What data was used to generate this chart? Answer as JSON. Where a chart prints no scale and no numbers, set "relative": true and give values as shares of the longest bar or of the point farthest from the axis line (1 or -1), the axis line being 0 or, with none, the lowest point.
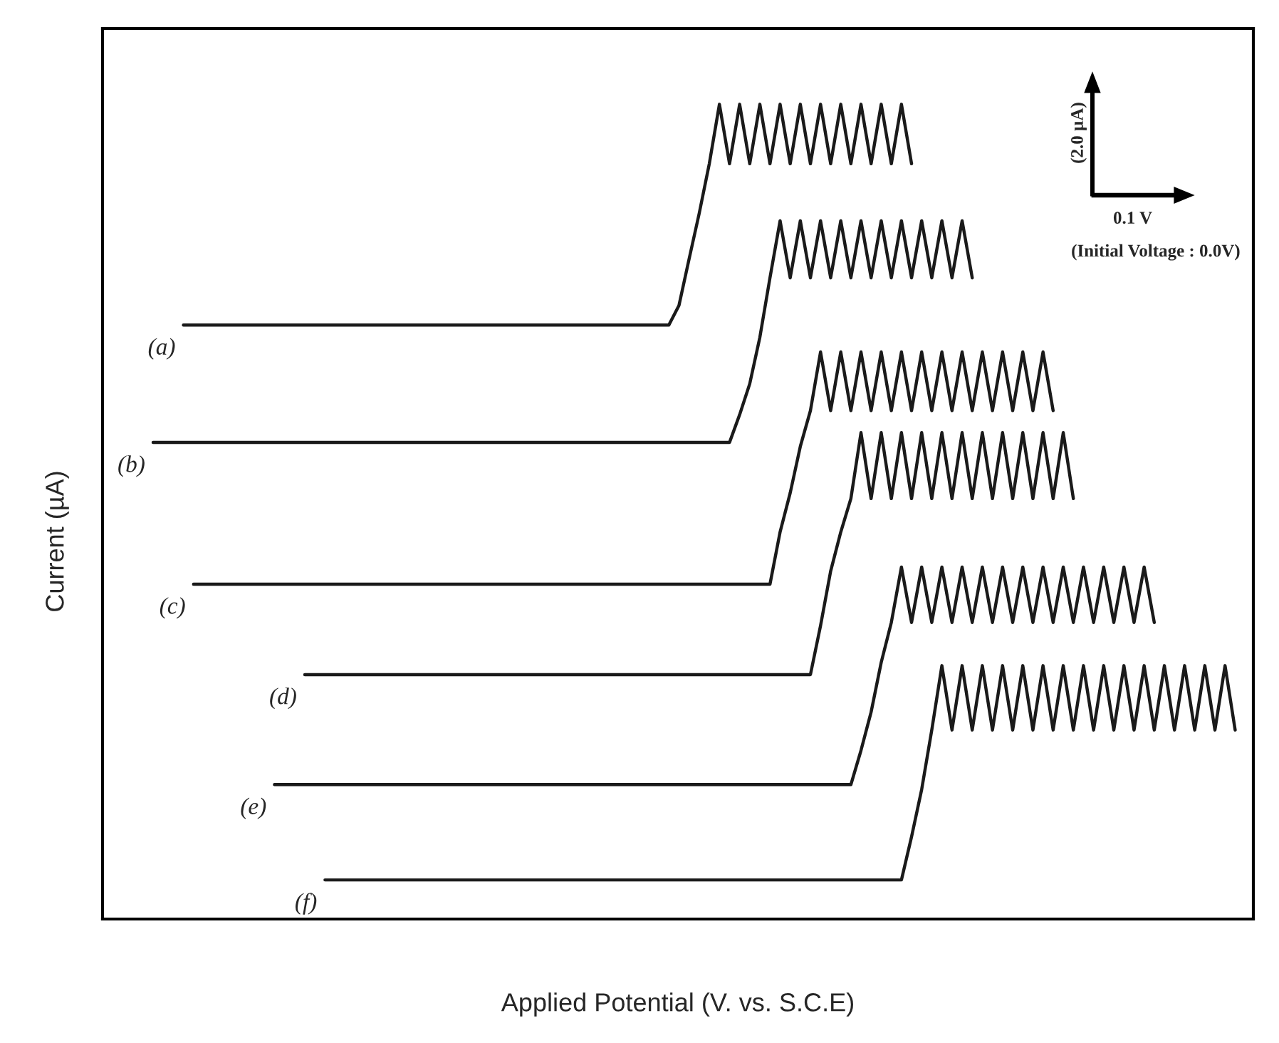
{
  "chart_data": {
    "type": "line",
    "relative": true,
    "xlabel": "Applied Potential (V. vs. S.C.E)",
    "ylabel": "Current (µA)",
    "tick_labels": false,
    "marker": "none",
    "line_style": "solid",
    "annotations": [
      "(2.0 µA)",
      "0.1 V",
      "(Initial Voltage : 0.0V)"
    ],
    "categories": [
      null,
      null,
      null,
      null,
      null,
      null,
      null,
      null,
      null,
      null,
      null,
      null,
      null,
      null,
      null,
      null,
      null,
      null,
      null,
      null,
      null,
      null,
      null,
      null,
      null,
      null,
      null,
      null,
      null,
      null,
      null,
      null,
      null,
      null,
      null,
      null,
      null,
      null,
      null,
      null,
      null,
      null,
      null,
      null,
      null,
      null,
      null,
      null,
      null,
      null,
      null,
      null,
      null,
      null,
      null,
      null,
      null,
      null,
      null,
      null,
      null,
      null,
      null,
      null,
      null,
      null,
      null,
      null,
      null,
      null,
      null,
      null,
      null,
      null,
      null,
      null,
      null,
      null,
      null,
      null,
      null,
      null,
      null,
      null,
      null,
      null,
      null,
      null,
      null,
      null,
      null,
      null,
      null,
      null,
      null,
      null,
      null,
      null,
      null,
      null,
      null,
      null,
      null,
      null,
      null,
      null,
      null,
      null
    ],
    "series": [
      {
        "name": "(a)",
        "color": "#1a1a1a",
        "values": [
          null,
          null,
          null,
          0.729,
          0.729,
          0.729,
          0.729,
          0.729,
          0.729,
          0.729,
          0.729,
          0.729,
          0.729,
          0.729,
          0.729,
          0.729,
          0.729,
          0.729,
          0.729,
          0.729,
          0.729,
          0.729,
          0.729,
          0.729,
          0.729,
          0.729,
          0.729,
          0.729,
          0.729,
          0.729,
          0.729,
          0.729,
          0.729,
          0.729,
          0.729,
          0.729,
          0.729,
          0.729,
          0.729,
          0.729,
          0.729,
          0.729,
          0.729,
          0.729,
          0.729,
          0.729,
          0.729,
          0.729,
          0.729,
          0.729,
          0.729,
          0.729,
          0.753,
          0.81,
          0.866,
          0.927,
          1.0,
          0.927,
          1.0,
          0.927,
          1.0,
          0.927,
          1.0,
          0.927,
          1.0,
          0.927,
          1.0,
          0.927,
          1.0,
          0.927,
          1.0,
          0.927,
          1.0,
          0.927,
          1.0,
          0.927,
          null,
          null,
          null,
          null,
          null,
          null,
          null,
          null,
          null,
          null,
          null,
          null,
          null,
          null,
          null,
          null,
          null,
          null,
          null,
          null,
          null,
          null,
          null,
          null,
          null,
          null,
          null,
          null,
          null,
          null,
          null,
          null
        ]
      },
      {
        "name": "(b)",
        "color": "#1a1a1a",
        "values": [
          0.585,
          0.585,
          0.585,
          0.585,
          0.585,
          0.585,
          0.585,
          0.585,
          0.585,
          0.585,
          0.585,
          0.585,
          0.585,
          0.585,
          0.585,
          0.585,
          0.585,
          0.585,
          0.585,
          0.585,
          0.585,
          0.585,
          0.585,
          0.585,
          0.585,
          0.585,
          0.585,
          0.585,
          0.585,
          0.585,
          0.585,
          0.585,
          0.585,
          0.585,
          0.585,
          0.585,
          0.585,
          0.585,
          0.585,
          0.585,
          0.585,
          0.585,
          0.585,
          0.585,
          0.585,
          0.585,
          0.585,
          0.585,
          0.585,
          0.585,
          0.585,
          0.585,
          0.585,
          0.585,
          0.585,
          0.585,
          0.585,
          0.585,
          0.619,
          0.657,
          0.714,
          0.787,
          0.857,
          0.787,
          0.857,
          0.787,
          0.857,
          0.787,
          0.857,
          0.787,
          0.857,
          0.787,
          0.857,
          0.787,
          0.857,
          0.787,
          0.857,
          0.787,
          0.857,
          0.787,
          0.857,
          0.787,
          null,
          null,
          null,
          null,
          null,
          null,
          null,
          null,
          null,
          null,
          null,
          null,
          null,
          null,
          null,
          null,
          null,
          null,
          null,
          null,
          null,
          null,
          null,
          null,
          null,
          null
        ]
      },
      {
        "name": "(c)",
        "color": "#1a1a1a",
        "values": [
          null,
          null,
          null,
          null,
          0.411,
          0.411,
          0.411,
          0.411,
          0.411,
          0.411,
          0.411,
          0.411,
          0.411,
          0.411,
          0.411,
          0.411,
          0.411,
          0.411,
          0.411,
          0.411,
          0.411,
          0.411,
          0.411,
          0.411,
          0.411,
          0.411,
          0.411,
          0.411,
          0.411,
          0.411,
          0.411,
          0.411,
          0.411,
          0.411,
          0.411,
          0.411,
          0.411,
          0.411,
          0.411,
          0.411,
          0.411,
          0.411,
          0.411,
          0.411,
          0.411,
          0.411,
          0.411,
          0.411,
          0.411,
          0.411,
          0.411,
          0.411,
          0.411,
          0.411,
          0.411,
          0.411,
          0.411,
          0.411,
          0.411,
          0.411,
          0.411,
          0.411,
          0.475,
          0.523,
          0.58,
          0.624,
          0.696,
          0.624,
          0.696,
          0.624,
          0.696,
          0.624,
          0.696,
          0.624,
          0.696,
          0.624,
          0.696,
          0.624,
          0.696,
          0.624,
          0.696,
          0.624,
          0.696,
          0.624,
          0.696,
          0.624,
          0.696,
          0.624,
          0.696,
          0.624,
          null,
          null,
          null,
          null,
          null,
          null,
          null,
          null,
          null,
          null,
          null,
          null,
          null,
          null,
          null,
          null,
          null,
          null
        ]
      },
      {
        "name": "(d)",
        "color": "#1a1a1a",
        "values": [
          null,
          null,
          null,
          null,
          null,
          null,
          null,
          null,
          null,
          null,
          null,
          null,
          null,
          null,
          null,
          0.3,
          0.3,
          0.3,
          0.3,
          0.3,
          0.3,
          0.3,
          0.3,
          0.3,
          0.3,
          0.3,
          0.3,
          0.3,
          0.3,
          0.3,
          0.3,
          0.3,
          0.3,
          0.3,
          0.3,
          0.3,
          0.3,
          0.3,
          0.3,
          0.3,
          0.3,
          0.3,
          0.3,
          0.3,
          0.3,
          0.3,
          0.3,
          0.3,
          0.3,
          0.3,
          0.3,
          0.3,
          0.3,
          0.3,
          0.3,
          0.3,
          0.3,
          0.3,
          0.3,
          0.3,
          0.3,
          0.3,
          0.3,
          0.3,
          0.3,
          0.3,
          0.36,
          0.427,
          0.475,
          0.516,
          0.597,
          0.516,
          0.597,
          0.516,
          0.597,
          0.516,
          0.597,
          0.516,
          0.597,
          0.516,
          0.597,
          0.516,
          0.597,
          0.516,
          0.597,
          0.516,
          0.597,
          0.516,
          0.597,
          0.516,
          0.597,
          0.516,
          null,
          null,
          null,
          null,
          null,
          null,
          null,
          null,
          null,
          null,
          null,
          null,
          null,
          null,
          null,
          null
        ]
      },
      {
        "name": "(e)",
        "color": "#1a1a1a",
        "values": [
          null,
          null,
          null,
          null,
          null,
          null,
          null,
          null,
          null,
          null,
          null,
          null,
          0.165,
          0.165,
          0.165,
          0.165,
          0.165,
          0.165,
          0.165,
          0.165,
          0.165,
          0.165,
          0.165,
          0.165,
          0.165,
          0.165,
          0.165,
          0.165,
          0.165,
          0.165,
          0.165,
          0.165,
          0.165,
          0.165,
          0.165,
          0.165,
          0.165,
          0.165,
          0.165,
          0.165,
          0.165,
          0.165,
          0.165,
          0.165,
          0.165,
          0.165,
          0.165,
          0.165,
          0.165,
          0.165,
          0.165,
          0.165,
          0.165,
          0.165,
          0.165,
          0.165,
          0.165,
          0.165,
          0.165,
          0.165,
          0.165,
          0.165,
          0.165,
          0.165,
          0.165,
          0.165,
          0.165,
          0.165,
          0.165,
          0.165,
          0.207,
          0.254,
          0.315,
          0.364,
          0.432,
          0.364,
          0.432,
          0.364,
          0.432,
          0.364,
          0.432,
          0.364,
          0.432,
          0.364,
          0.432,
          0.364,
          0.432,
          0.364,
          0.432,
          0.364,
          0.432,
          0.364,
          0.432,
          0.364,
          0.432,
          0.364,
          0.432,
          0.364,
          0.432,
          0.364,
          null,
          null,
          null,
          null,
          null,
          null,
          null,
          null
        ]
      },
      {
        "name": "(f)",
        "color": "#1a1a1a",
        "values": [
          null,
          null,
          null,
          null,
          null,
          null,
          null,
          null,
          null,
          null,
          null,
          null,
          null,
          null,
          null,
          null,
          null,
          0.048,
          0.048,
          0.048,
          0.048,
          0.048,
          0.048,
          0.048,
          0.048,
          0.048,
          0.048,
          0.048,
          0.048,
          0.048,
          0.048,
          0.048,
          0.048,
          0.048,
          0.048,
          0.048,
          0.048,
          0.048,
          0.048,
          0.048,
          0.048,
          0.048,
          0.048,
          0.048,
          0.048,
          0.048,
          0.048,
          0.048,
          0.048,
          0.048,
          0.048,
          0.048,
          0.048,
          0.048,
          0.048,
          0.048,
          0.048,
          0.048,
          0.048,
          0.048,
          0.048,
          0.048,
          0.048,
          0.048,
          0.048,
          0.048,
          0.048,
          0.048,
          0.048,
          0.048,
          0.048,
          0.048,
          0.048,
          0.048,
          0.048,
          0.101,
          0.159,
          0.232,
          0.311,
          0.232,
          0.311,
          0.232,
          0.311,
          0.232,
          0.311,
          0.232,
          0.311,
          0.232,
          0.311,
          0.232,
          0.311,
          0.232,
          0.311,
          0.232,
          0.311,
          0.232,
          0.311,
          0.232,
          0.311,
          0.232,
          0.311,
          0.232,
          0.311,
          0.232,
          0.311,
          0.232,
          0.311,
          0.232
        ]
      }
    ]
  }
}
